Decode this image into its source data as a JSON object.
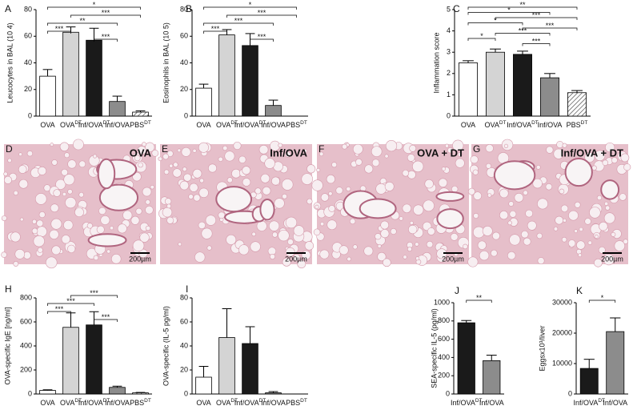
{
  "chart_data": [
    {
      "panel": "A",
      "type": "bar",
      "ylabel": "Leucocytes in BAL (10 4)",
      "categories": [
        "OVA",
        "OVA",
        "Inf/OVA",
        "Inf/OVA",
        "PBS"
      ],
      "category_sup": [
        null,
        "DT",
        "DT",
        null,
        "DT"
      ],
      "values": [
        30,
        63,
        57,
        11,
        3
      ],
      "errors": [
        5,
        4,
        9,
        4,
        1
      ],
      "colors": [
        "#ffffff",
        "#d4d4d4",
        "#1a1a1a",
        "#8c8c8c",
        "hatch"
      ],
      "ylim": [
        0,
        80
      ],
      "yticks": [
        0,
        20,
        40,
        60,
        80
      ],
      "significance": [
        {
          "from": 0,
          "to": 4,
          "label": "*"
        },
        {
          "from": 1,
          "to": 4,
          "label": "***"
        },
        {
          "from": 0,
          "to": 3,
          "label": "**"
        },
        {
          "from": 0,
          "to": 1,
          "label": "***"
        },
        {
          "from": 2,
          "to": 3,
          "label": "***"
        }
      ]
    },
    {
      "panel": "B",
      "type": "bar",
      "ylabel": "Eosinophils in BAL (10 5)",
      "categories": [
        "OVA",
        "OVA",
        "Inf/OVA",
        "Inf/OVA",
        "PBS"
      ],
      "category_sup": [
        null,
        "DT",
        "DT",
        null,
        "DT"
      ],
      "values": [
        21,
        61,
        53,
        8,
        0
      ],
      "errors": [
        3,
        4,
        9,
        4,
        0
      ],
      "colors": [
        "#ffffff",
        "#d4d4d4",
        "#1a1a1a",
        "#8c8c8c",
        "hatch"
      ],
      "ylim": [
        0,
        80
      ],
      "yticks": [
        0,
        20,
        40,
        60,
        80
      ],
      "significance": [
        {
          "from": 0,
          "to": 4,
          "label": "*"
        },
        {
          "from": 1,
          "to": 4,
          "label": "***"
        },
        {
          "from": 0,
          "to": 3,
          "label": "***"
        },
        {
          "from": 0,
          "to": 1,
          "label": "***"
        },
        {
          "from": 2,
          "to": 3,
          "label": "***"
        }
      ]
    },
    {
      "panel": "C",
      "type": "bar",
      "ylabel": "Inflammation score",
      "categories": [
        "OVA",
        "OVA",
        "Inf/OVA",
        "Inf/OVA",
        "PBS"
      ],
      "category_sup": [
        null,
        "DT",
        "DT",
        null,
        "DT"
      ],
      "values": [
        2.5,
        3.0,
        2.9,
        1.8,
        1.1
      ],
      "errors": [
        0.1,
        0.15,
        0.15,
        0.2,
        0.1
      ],
      "colors": [
        "#ffffff",
        "#d4d4d4",
        "#1a1a1a",
        "#8c8c8c",
        "hatch"
      ],
      "ylim": [
        0,
        5
      ],
      "yticks": [
        0,
        1,
        2,
        3,
        4,
        5
      ],
      "significance": [
        {
          "from": 0,
          "to": 4,
          "label": "**"
        },
        {
          "from": 0,
          "to": 3,
          "label": "*"
        },
        {
          "from": 1,
          "to": 4,
          "label": "***"
        },
        {
          "from": 0,
          "to": 2,
          "label": "*"
        },
        {
          "from": 2,
          "to": 4,
          "label": "***"
        },
        {
          "from": 1,
          "to": 3,
          "label": "***"
        },
        {
          "from": 0,
          "to": 1,
          "label": "*"
        },
        {
          "from": 2,
          "to": 3,
          "label": "***"
        }
      ]
    },
    {
      "panel": "H",
      "type": "bar",
      "ylabel": "OVA-specific IgE [ng/ml]",
      "categories": [
        "OVA",
        "OVA",
        "Inf/OVA",
        "Inf/OVA",
        "PBS"
      ],
      "category_sup": [
        null,
        "DT",
        "DT",
        null,
        "DT"
      ],
      "values": [
        30,
        555,
        575,
        55,
        10
      ],
      "errors": [
        5,
        120,
        110,
        10,
        3
      ],
      "colors": [
        "#ffffff",
        "#d4d4d4",
        "#1a1a1a",
        "#8c8c8c",
        "hatch"
      ],
      "ylim": [
        0,
        800
      ],
      "yticks": [
        0,
        200,
        400,
        600,
        800
      ],
      "significance": [
        {
          "from": 1,
          "to": 3,
          "label": "***"
        },
        {
          "from": 0,
          "to": 2,
          "label": "***"
        },
        {
          "from": 0,
          "to": 1,
          "label": "***"
        },
        {
          "from": 2,
          "to": 3,
          "label": "***"
        }
      ]
    },
    {
      "panel": "I",
      "type": "bar",
      "ylabel": "OVA-specific (IL-5 pg/ml)",
      "categories": [
        "OVA",
        "OVA",
        "Inf/OVA",
        "Inf/OVA",
        "PBS"
      ],
      "category_sup": [
        null,
        "DT",
        "DT",
        null,
        "DT"
      ],
      "values": [
        14,
        47,
        42,
        1,
        0
      ],
      "errors": [
        9,
        24,
        14,
        1,
        0
      ],
      "colors": [
        "#ffffff",
        "#d4d4d4",
        "#1a1a1a",
        "#8c8c8c",
        "hatch"
      ],
      "ylim": [
        0,
        80
      ],
      "yticks": [
        0,
        20,
        40,
        60,
        80
      ],
      "significance": []
    },
    {
      "panel": "J",
      "type": "bar",
      "ylabel": "SEA-specific IL-5 (pg/ml)",
      "categories": [
        "Inf/OVA",
        "Inf/OVA"
      ],
      "category_sup": [
        "DT",
        null
      ],
      "values": [
        780,
        365
      ],
      "errors": [
        25,
        60
      ],
      "colors": [
        "#1a1a1a",
        "#8c8c8c"
      ],
      "ylim": [
        0,
        1000
      ],
      "yticks": [
        0,
        200,
        400,
        600,
        800,
        1000
      ],
      "significance": [
        {
          "from": 0,
          "to": 1,
          "label": "**"
        }
      ]
    },
    {
      "panel": "K",
      "type": "bar",
      "ylabel": "Eggsx10³/liver",
      "categories": [
        "Inf/OVA",
        "Inf/OVA"
      ],
      "category_sup": [
        "DT",
        null
      ],
      "values": [
        8400,
        20500
      ],
      "errors": [
        3000,
        4500
      ],
      "colors": [
        "#1a1a1a",
        "#8c8c8c"
      ],
      "ylim": [
        0,
        30000
      ],
      "yticks": [
        0,
        10000,
        20000,
        30000
      ],
      "significance": [
        {
          "from": 0,
          "to": 1,
          "label": "*"
        }
      ]
    }
  ],
  "micrographs": [
    {
      "panel": "D",
      "caption": "OVA",
      "scale": "200µm"
    },
    {
      "panel": "E",
      "caption": "Inf/OVA",
      "scale": "200µm"
    },
    {
      "panel": "F",
      "caption": "OVA + DT",
      "scale": "200µm"
    },
    {
      "panel": "G",
      "caption": "Inf/OVA + DT",
      "scale": "200µm"
    }
  ]
}
